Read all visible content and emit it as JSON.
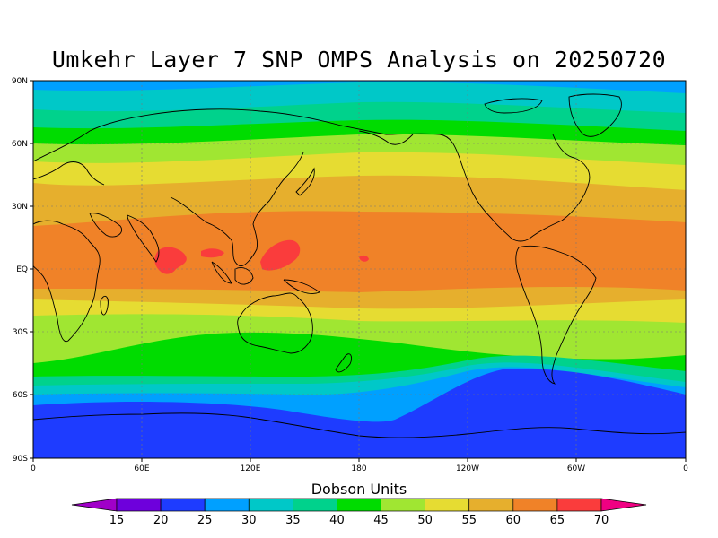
{
  "map": {
    "title": "Umkehr Layer 7 SNP OMPS Analysis on 20250720",
    "lat_ticks": [
      "90N",
      "60N",
      "30N",
      "EQ",
      "30S",
      "60S",
      "90S"
    ],
    "lon_ticks": [
      "0",
      "60E",
      "120E",
      "180",
      "120W",
      "60W",
      "0"
    ],
    "colorbar": {
      "title": "Dobson Units",
      "labels": [
        "15",
        "20",
        "25",
        "30",
        "35",
        "40",
        "45",
        "50",
        "55",
        "60",
        "65",
        "70"
      ],
      "colors": [
        "#a000c8",
        "#6e00dc",
        "#1e3cff",
        "#00a0ff",
        "#00c8c8",
        "#00d28c",
        "#00dc00",
        "#a0e632",
        "#e6dc32",
        "#e6af2d",
        "#f08228",
        "#fa3c3c",
        "#f00082"
      ]
    }
  }
}
